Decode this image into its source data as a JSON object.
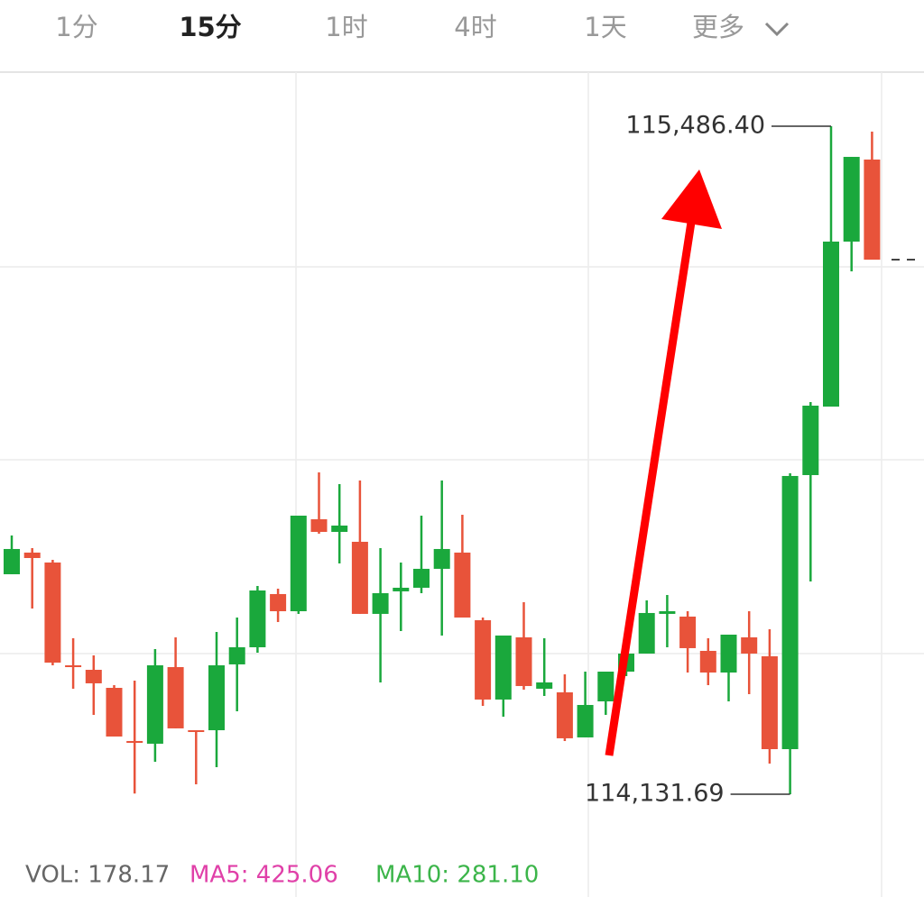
{
  "tabs": [
    "1分",
    "15分",
    "1时",
    "4时",
    "1天",
    "更多"
  ],
  "chart_data": {
    "type": "candlestick",
    "up_color": "#1aa83c",
    "down_color": "#e8533a",
    "ylim": [
      114023.8,
      115596.1
    ],
    "candles": [
      [
        114577.8,
        114656.4,
        114577.8,
        114629.0
      ],
      [
        114621.7,
        114630.8,
        114508.3,
        114610.7
      ],
      [
        114601.6,
        114607.0,
        114393.1,
        114398.6
      ],
      [
        114393.1,
        114448.0,
        114345.6,
        114389.5
      ],
      [
        114384.0,
        114413.2,
        114292.6,
        114356.6
      ],
      [
        114347.4,
        114352.9,
        114248.7,
        114248.7
      ],
      [
        114239.6,
        114362.1,
        114133.0,
        114235.9
      ],
      [
        114234.1,
        114426.0,
        114197.5,
        114393.1
      ],
      [
        114389.5,
        114449.8,
        114265.2,
        114265.2
      ],
      [
        114261.5,
        114261.5,
        114151.8,
        114257.9
      ],
      [
        114261.5,
        114460.8,
        114186.6,
        114393.1
      ],
      [
        114395.0,
        114490.0,
        114299.9,
        114429.7
      ],
      [
        114429.7,
        114554.0,
        114418.7,
        114544.9
      ],
      [
        114537.6,
        114548.5,
        114480.9,
        114502.8
      ],
      [
        114502.8,
        114696.6,
        114497.4,
        114696.6
      ],
      [
        114689.3,
        114784.4,
        114660.1,
        114663.7
      ],
      [
        114663.7,
        114760.6,
        114599.7,
        114676.5
      ],
      [
        114643.6,
        114767.9,
        114497.4,
        114497.4
      ],
      [
        114497.4,
        114630.8,
        114358.4,
        114539.4
      ],
      [
        114543.1,
        114601.6,
        114462.6,
        114550.4
      ],
      [
        114550.4,
        114696.6,
        114539.4,
        114588.8
      ],
      [
        114588.8,
        114767.9,
        114453.5,
        114629.0
      ],
      [
        114621.7,
        114698.5,
        114490.0,
        114490.0
      ],
      [
        114484.6,
        114490.0,
        114310.9,
        114323.7
      ],
      [
        114323.7,
        114453.5,
        114288.9,
        114453.5
      ],
      [
        114449.8,
        114521.1,
        114343.8,
        114351.1
      ],
      [
        114345.6,
        114448.0,
        114331.0,
        114358.4
      ],
      [
        114338.3,
        114374.9,
        114239.6,
        114245.1
      ],
      [
        114246.9,
        114380.3,
        114246.9,
        114312.7
      ],
      [
        114320.0,
        114380.3,
        114292.6,
        114380.3
      ],
      [
        114380.3,
        114427.9,
        114371.2,
        114416.9
      ],
      [
        114416.9,
        114524.8,
        114416.9,
        114499.2
      ],
      [
        114497.4,
        114535.7,
        114429.7,
        114502.8
      ],
      [
        114491.9,
        114502.8,
        114378.5,
        114427.9
      ],
      [
        114422.4,
        114448.0,
        114352.9,
        114378.5
      ],
      [
        114378.5,
        114455.3,
        114320.0,
        114455.3
      ],
      [
        114449.8,
        114502.8,
        114334.6,
        114416.9
      ],
      [
        114411.4,
        114466.3,
        114193.9,
        114223.1
      ],
      [
        114223.1,
        114782.5,
        114131.69,
        114777.1
      ],
      [
        114778.9,
        114927.0,
        114563.2,
        114919.7
      ],
      [
        114917.8,
        115486.4,
        114917.8,
        115252.4
      ],
      [
        115252.4,
        115424.2,
        115192.1,
        115424.2
      ],
      [
        115418.8,
        115475.4,
        115215.8,
        115215.8
      ]
    ],
    "annotations": [
      {
        "value": 115486.4,
        "label": "115,486.40"
      },
      {
        "value": 114131.69,
        "label": "114,131.69"
      }
    ]
  },
  "indicators": [
    {
      "text": "VOL: 178.17",
      "color": "#666666"
    },
    {
      "text": "MA5: 425.06",
      "color": "#e040a8"
    },
    {
      "text": "MA10: 281.10",
      "color": "#3cb54a"
    }
  ]
}
